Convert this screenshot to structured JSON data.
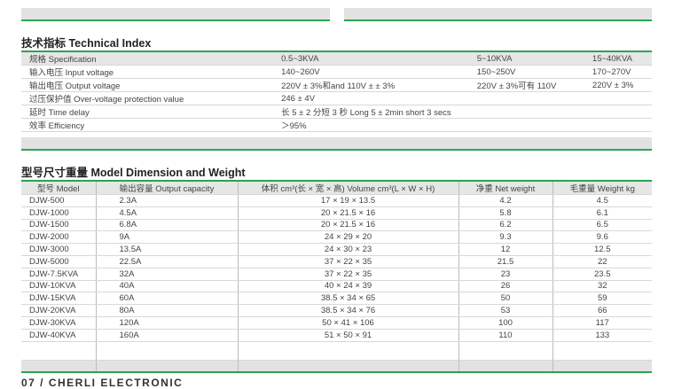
{
  "colors": {
    "accent_green": "#2aa450",
    "band_gray": "#e2e2e2"
  },
  "technical": {
    "title": "技术指标 Technical Index",
    "rows": [
      [
        "规格 Specification",
        "0.5~3KVA",
        "5~10KVA",
        "15~40KVA"
      ],
      [
        "输入电压 Input voltage",
        "140~260V",
        "150~250V",
        "170~270V"
      ],
      [
        "输出电压 Output voltage",
        "220V ± 3%和and 110V ± ± 3%",
        "220V ± 3%可有 110V",
        "220V ± 3%"
      ],
      [
        "过压保护值 Over-voltage protection value",
        "246 ± 4V",
        "",
        ""
      ],
      [
        "延时 Time delay",
        "长 5 ± 2 分短 3 秒 Long 5 ± 2min short 3 secs",
        "",
        ""
      ],
      [
        "效率 Efficiency",
        "＞95%",
        "",
        ""
      ]
    ]
  },
  "dimension": {
    "title": "型号尺寸重量 Model Dimension and Weight",
    "headers": [
      "型号 Model",
      "输出容量 Output capacity",
      "体积 cm³(长 × 宽 × 高) Volume cm³(L × W × H)",
      "净重 Net weight",
      "毛重量 Weight kg"
    ],
    "rows": [
      [
        "DJW-500",
        "2.3A",
        "17 × 19 × 13.5",
        "4.2",
        "4.5"
      ],
      [
        "DJW-1000",
        "4.5A",
        "20 × 21.5 × 16",
        "5.8",
        "6.1"
      ],
      [
        "DJW-1500",
        "6.8A",
        "20 × 21.5 × 16",
        "6.2",
        "6.5"
      ],
      [
        "DJW-2000",
        "9A",
        "24 × 29 × 20",
        "9.3",
        "9.6"
      ],
      [
        "DJW-3000",
        "13.5A",
        "24 × 30 × 23",
        "12",
        "12.5"
      ],
      [
        "DJW-5000",
        "22.5A",
        "37 × 22 × 35",
        "21.5",
        "22"
      ],
      [
        "DJW-7.5KVA",
        "32A",
        "37 × 22 × 35",
        "23",
        "23.5"
      ],
      [
        "DJW-10KVA",
        "40A",
        "40 × 24 × 39",
        "26",
        "32"
      ],
      [
        "DJW-15KVA",
        "60A",
        "38.5 × 34 × 65",
        "50",
        "59"
      ],
      [
        "DJW-20KVA",
        "80A",
        "38.5 × 34 × 76",
        "53",
        "66"
      ],
      [
        "DJW-30KVA",
        "120A",
        "50 × 41 × 106",
        "100",
        "117"
      ],
      [
        "DJW-40KVA",
        "160A",
        "51 × 50 × 91",
        "110",
        "133"
      ]
    ]
  },
  "footer": "07 / CHERLI ELECTRONIC"
}
